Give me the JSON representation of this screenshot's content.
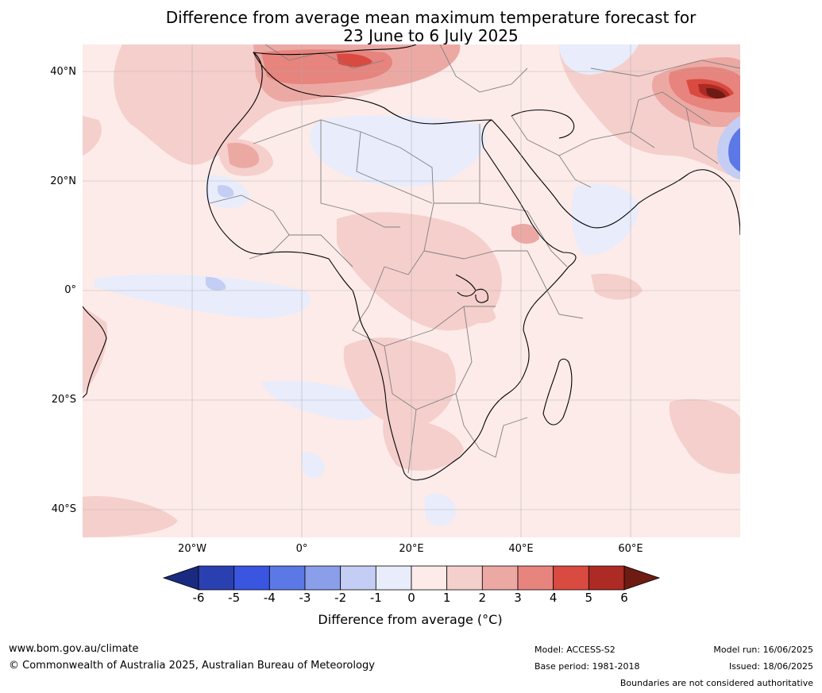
{
  "title": {
    "line1": "Difference from average mean maximum temperature forecast for",
    "line2": "23 June to 6 July 2025"
  },
  "map": {
    "region": "Africa",
    "lat_labels": [
      "40°N",
      "20°N",
      "0°",
      "20°S",
      "40°S"
    ],
    "lon_labels": [
      "20°W",
      "0°",
      "20°E",
      "40°E",
      "60°E"
    ],
    "background_color": "#fcebe9",
    "land_border_color": "#000000",
    "country_border_color": "#808080"
  },
  "colorbar": {
    "ticks": [
      "-6",
      "-5",
      "-4",
      "-3",
      "-2",
      "-1",
      "0",
      "1",
      "2",
      "3",
      "4",
      "5",
      "6"
    ],
    "colors": [
      "#1a2a80",
      "#2b40b0",
      "#3a55e0",
      "#5c78e6",
      "#8a9eea",
      "#c4cdf3",
      "#e8ecfb",
      "#fcebe9",
      "#f5cfcc",
      "#eca9a4",
      "#e6847d",
      "#d94a40",
      "#ad2b24",
      "#6e1b14"
    ],
    "label": "Difference from average (°C)"
  },
  "footer": {
    "website": "www.bom.gov.au/climate",
    "copyright": "© Commonwealth of Australia 2025, Australian Bureau of Meteorology",
    "model": "Model: ACCESS-S2",
    "base_period": "Base period: 1981-2018",
    "model_run": "Model run: 16/06/2025",
    "issued": "Issued: 18/06/2025",
    "disclaimer": "Boundaries are not considered authoritative"
  }
}
